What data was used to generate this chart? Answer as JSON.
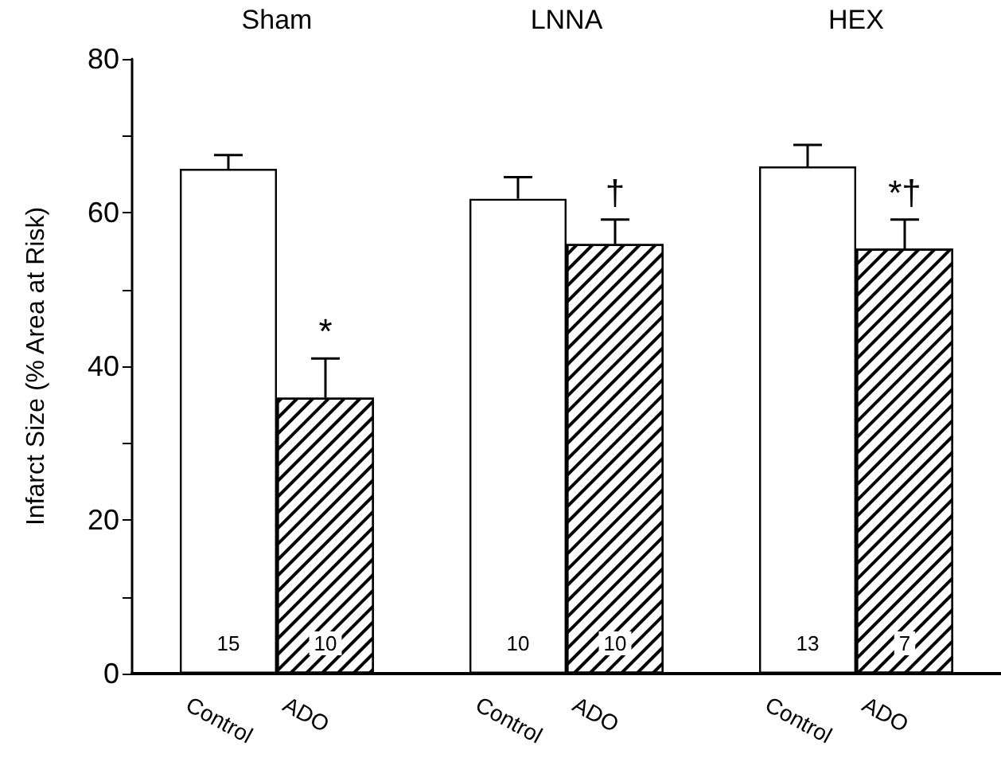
{
  "chart_data": {
    "type": "bar",
    "ylabel": "Infarct Size (% Area at Risk)",
    "categories": [
      "Sham",
      "LNNA",
      "HEX"
    ],
    "series": [
      {
        "name": "Control",
        "color": "#ffffff",
        "values": [
          65.7,
          61.8,
          66.0
        ],
        "errors": [
          [
            65.7,
            67.5
          ],
          [
            61.8,
            64.6
          ],
          [
            66.0,
            68.8
          ]
        ]
      },
      {
        "name": "ADO",
        "color": "#000000",
        "values": [
          35.9,
          55.9,
          55.3
        ],
        "errors": [
          [
            35.9,
            41.0
          ],
          [
            55.9,
            59.1
          ],
          [
            55.3,
            59.1
          ]
        ]
      }
    ],
    "ylim": [
      0,
      80
    ],
    "yticks": [
      0,
      {
        "value": 10,
        "label": null
      },
      20,
      {
        "value": 30,
        "label": null
      },
      40,
      {
        "value": 50,
        "label": null
      },
      60,
      {
        "value": 70,
        "label": null
      },
      80
    ],
    "annotations": [
      "15",
      "10",
      "10",
      "10",
      "13",
      "7",
      "*",
      "†",
      "*†"
    ],
    "grid": false,
    "legend": false
  }
}
